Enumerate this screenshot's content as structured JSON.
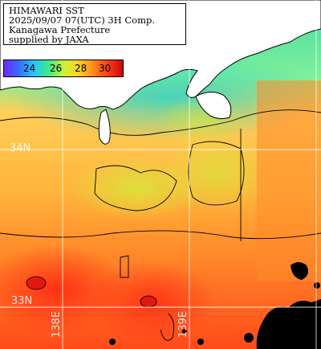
{
  "title": {
    "lines": [
      "HIMAWARI SST",
      "2025/09/07 07(UTC) 3H Comp.",
      "Kanagawa Prefecture",
      "supplied by JAXA"
    ]
  },
  "legend": {
    "ticks": [
      "24",
      "26",
      "28",
      "30"
    ],
    "unit_range": [
      23,
      31
    ],
    "colors": [
      "#6a2bff",
      "#3a6cff",
      "#22c7ff",
      "#3ee88a",
      "#c9f23a",
      "#ffd21f",
      "#ff8a1a",
      "#ff3b12",
      "#c80a0a"
    ]
  },
  "grid": {
    "lat_labels": [
      "34N",
      "33N"
    ],
    "lon_labels": [
      "138E",
      "139E"
    ]
  },
  "colors": {
    "land": "#ffffff",
    "cloud": "#000000",
    "grid": "#ffffff",
    "cold_coast": "#34d39a",
    "warm_sea": "#ffb23a",
    "hot_sea": "#ff4a1a"
  }
}
